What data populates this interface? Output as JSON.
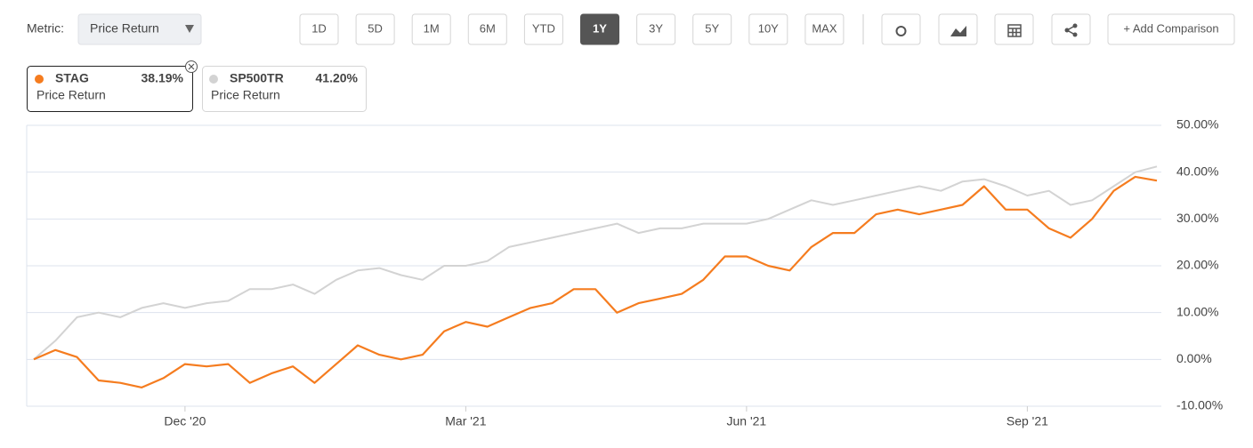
{
  "toolbar": {
    "metric_label": "Metric:",
    "metric_value": "Price Return",
    "ranges": [
      "1D",
      "5D",
      "1M",
      "6M",
      "YTD",
      "1Y",
      "3Y",
      "5Y",
      "10Y",
      "MAX"
    ],
    "add_comparison": "+ Add Comparison"
  },
  "legend": [
    {
      "symbol": "STAG",
      "value": "38.19%",
      "metric": "Price Return"
    },
    {
      "symbol": "SP500TR",
      "value": "41.20%",
      "metric": "Price Return"
    }
  ],
  "chart_data": {
    "type": "line",
    "categories": [
      null,
      null,
      null,
      null,
      null,
      null,
      null,
      "Dec '20",
      null,
      null,
      null,
      null,
      null,
      null,
      null,
      null,
      null,
      null,
      null,
      null,
      "Mar '21",
      null,
      null,
      null,
      null,
      null,
      null,
      null,
      null,
      null,
      null,
      null,
      null,
      "Jun '21",
      null,
      null,
      null,
      null,
      null,
      null,
      null,
      null,
      null,
      null,
      null,
      null,
      "Sep '21",
      null,
      null,
      null,
      null,
      null,
      null
    ],
    "series": [
      {
        "name": "STAG",
        "color": "#f57c1f",
        "values": [
          0,
          2,
          0.5,
          -4.5,
          -5,
          -6,
          -4,
          -1,
          -1.5,
          -1,
          -5,
          -3,
          -1.5,
          -5,
          -1,
          3,
          1,
          0,
          1,
          6,
          8,
          7,
          9,
          11,
          12,
          15,
          15,
          10,
          12,
          13,
          14,
          17,
          22,
          22,
          20,
          19,
          24,
          27,
          27,
          31,
          32,
          31,
          32,
          33,
          37,
          32,
          32,
          28,
          26,
          30,
          36,
          39,
          38.19
        ]
      },
      {
        "name": "SP500TR",
        "color": "#d3d3d3",
        "values": [
          0,
          4,
          9,
          10,
          9,
          11,
          12,
          11,
          12,
          12.5,
          15,
          15,
          16,
          14,
          17,
          19,
          19.5,
          18,
          17,
          20,
          20,
          21,
          24,
          25,
          26,
          27,
          28,
          29,
          27,
          28,
          28,
          29,
          29,
          29,
          30,
          32,
          34,
          33,
          34,
          35,
          36,
          37,
          36,
          38,
          38.5,
          37,
          35,
          36,
          33,
          34,
          37,
          40,
          41.2
        ]
      }
    ],
    "ylim": [
      -10,
      50
    ],
    "yticks": [
      {
        "value": -10,
        "label": "-10.00%"
      },
      {
        "value": 0,
        "label": "0.00%"
      },
      {
        "value": 10,
        "label": "10.00%"
      },
      {
        "value": 20,
        "label": "20.00%"
      },
      {
        "value": 30,
        "label": "30.00%"
      },
      {
        "value": 40,
        "label": "40.00%"
      },
      {
        "value": 50,
        "label": "50.00%"
      }
    ],
    "grid": true
  }
}
